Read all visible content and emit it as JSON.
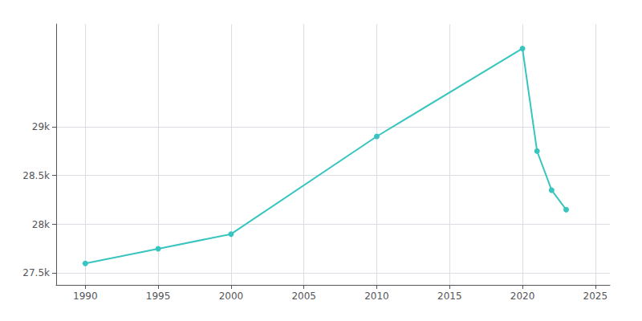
{
  "chart_data": {
    "type": "line",
    "x": [
      1990,
      1995,
      2000,
      2010,
      2020,
      2021,
      2022,
      2023
    ],
    "values": [
      27600,
      27750,
      27900,
      28900,
      29800,
      28750,
      28350,
      28150
    ],
    "color": "#38c5c0",
    "marker": "circle",
    "xlim": [
      1988,
      2026
    ],
    "xticks": [
      1990,
      1995,
      2000,
      2005,
      2010,
      2015,
      2020,
      2025
    ],
    "ylim": [
      27380,
      30050
    ],
    "yticks": [
      {
        "value": 27500,
        "label": "27.5k"
      },
      {
        "value": 28000,
        "label": "28k"
      },
      {
        "value": 28500,
        "label": "28.5k"
      },
      {
        "value": 29000,
        "label": "29k"
      }
    ],
    "grid": true
  }
}
